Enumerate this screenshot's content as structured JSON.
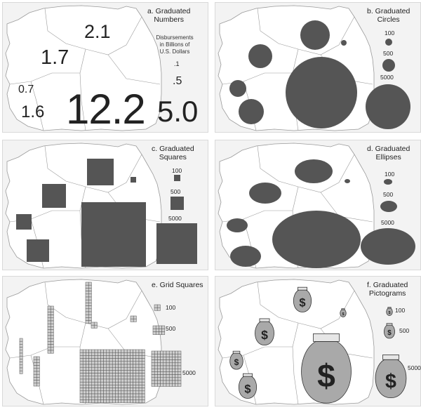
{
  "panels": {
    "a": {
      "title_line1": "a. Graduated",
      "title_line2": "Numbers",
      "note_line1": "Disbursements",
      "note_line2": "in Billions of",
      "note_line3": "U.S. Dollars",
      "map_labels": [
        "2.1",
        "1.7",
        "0.7",
        "1.6",
        "12.2",
        "5.0"
      ],
      "legend": [
        ".1",
        ".5"
      ]
    },
    "b": {
      "title_line1": "b. Graduated",
      "title_line2": "Circles",
      "legend": [
        "100",
        "500",
        "5000"
      ]
    },
    "c": {
      "title_line1": "c. Graduated",
      "title_line2": "Squares",
      "legend": [
        "100",
        "500",
        "5000"
      ]
    },
    "d": {
      "title_line1": "d. Graduated",
      "title_line2": "Ellipses",
      "legend": [
        "100",
        "500",
        "5000"
      ]
    },
    "e": {
      "title_line1": "e. Grid Squares",
      "legend": [
        "100",
        "500",
        "5000"
      ]
    },
    "f": {
      "title_line1": "f. Graduated",
      "title_line2": "Pictograms",
      "legend": [
        "100",
        "500",
        "5000"
      ]
    }
  },
  "symbol_glyph": "$",
  "colors": {
    "symbol_fill": "#555555",
    "land": "#ffffff",
    "border": "#9a9a9a",
    "grid_fill": "#cfcfcf",
    "bag_fill": "#a9a9a9"
  }
}
